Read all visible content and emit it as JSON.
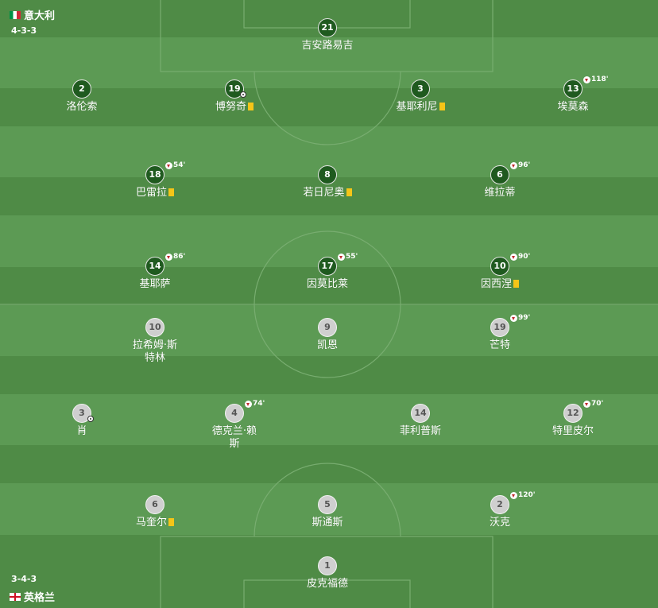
{
  "colors": {
    "stripe_dark": "#4f8b46",
    "stripe_light": "#5c9a54",
    "lines": "#78ad70",
    "italy_circle": "#1f5a1f",
    "england_circle": "#cfcfcf",
    "yellow_card": "#f5c518",
    "sub_arrow": "#c0282d"
  },
  "home": {
    "name": "意大利",
    "formation": "4-3-3",
    "flag_icon": "italy-flag-icon",
    "players": [
      {
        "number": "21",
        "name": "吉安路易吉",
        "sub": "",
        "card": false,
        "goal": false
      },
      {
        "number": "2",
        "name": "洛伦索",
        "sub": "",
        "card": false,
        "goal": false
      },
      {
        "number": "19",
        "name": "博努奇",
        "sub": "",
        "card": true,
        "goal": true
      },
      {
        "number": "3",
        "name": "基耶利尼",
        "sub": "",
        "card": true,
        "goal": false
      },
      {
        "number": "13",
        "name": "埃莫森",
        "sub": "118'",
        "card": false,
        "goal": false
      },
      {
        "number": "18",
        "name": "巴雷拉",
        "sub": "54'",
        "card": true,
        "goal": false
      },
      {
        "number": "8",
        "name": "若日尼奥",
        "sub": "",
        "card": true,
        "goal": false
      },
      {
        "number": "6",
        "name": "维拉蒂",
        "sub": "96'",
        "card": false,
        "goal": false
      },
      {
        "number": "14",
        "name": "基耶萨",
        "sub": "86'",
        "card": false,
        "goal": false
      },
      {
        "number": "17",
        "name": "因莫比莱",
        "sub": "55'",
        "card": false,
        "goal": false
      },
      {
        "number": "10",
        "name": "因西涅",
        "sub": "90'",
        "card": true,
        "goal": false
      }
    ]
  },
  "away": {
    "name": "英格兰",
    "formation": "3-4-3",
    "flag_icon": "england-flag-icon",
    "players": [
      {
        "number": "10",
        "name": "拉希姆·斯特林",
        "sub": "",
        "card": false,
        "goal": false
      },
      {
        "number": "9",
        "name": "凯恩",
        "sub": "",
        "card": false,
        "goal": false
      },
      {
        "number": "19",
        "name": "芒特",
        "sub": "99'",
        "card": false,
        "goal": false
      },
      {
        "number": "3",
        "name": "肖",
        "sub": "",
        "card": false,
        "goal": true
      },
      {
        "number": "4",
        "name": "德克兰·赖斯",
        "sub": "74'",
        "card": false,
        "goal": false
      },
      {
        "number": "14",
        "name": "菲利普斯",
        "sub": "",
        "card": false,
        "goal": false
      },
      {
        "number": "12",
        "name": "特里皮尔",
        "sub": "70'",
        "card": false,
        "goal": false
      },
      {
        "number": "6",
        "name": "马奎尔",
        "sub": "",
        "card": true,
        "goal": false
      },
      {
        "number": "5",
        "name": "斯通斯",
        "sub": "",
        "card": false,
        "goal": false
      },
      {
        "number": "2",
        "name": "沃克",
        "sub": "120'",
        "card": false,
        "goal": false
      },
      {
        "number": "1",
        "name": "皮克福德",
        "sub": "",
        "card": false,
        "goal": false
      }
    ]
  }
}
